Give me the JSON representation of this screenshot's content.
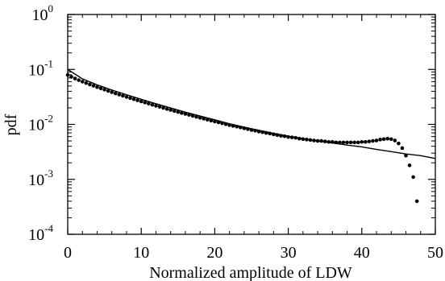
{
  "chart_data": {
    "type": "scatter",
    "title": "",
    "xlabel": "Normalized amplitude of LDW",
    "ylabel": "pdf",
    "xlim": [
      0,
      50
    ],
    "ylim": [
      0.0001,
      1
    ],
    "yscale": "log",
    "grid": false,
    "legend": "none",
    "x_ticks": [
      "0",
      "10",
      "20",
      "30",
      "40",
      "50"
    ],
    "y_ticks": [
      {
        "base": "10",
        "exp": "-4",
        "value": 0.0001
      },
      {
        "base": "10",
        "exp": "-3",
        "value": 0.001
      },
      {
        "base": "10",
        "exp": "-2",
        "value": 0.01
      },
      {
        "base": "10",
        "exp": "-1",
        "value": 0.1
      },
      {
        "base": "10",
        "exp": "0",
        "value": 1
      }
    ],
    "series": [
      {
        "kind": "points",
        "color": "#000000",
        "x": [
          0,
          0.5,
          1,
          1.5,
          2,
          2.5,
          3,
          3.5,
          4,
          4.5,
          5,
          5.5,
          6,
          6.5,
          7,
          7.5,
          8,
          8.5,
          9,
          9.5,
          10,
          10.5,
          11,
          11.5,
          12,
          12.5,
          13,
          13.5,
          14,
          14.5,
          15,
          15.5,
          16,
          16.5,
          17,
          17.5,
          18,
          18.5,
          19,
          19.5,
          20,
          20.5,
          21,
          21.5,
          22,
          22.5,
          23,
          23.5,
          24,
          24.5,
          25,
          25.5,
          26,
          26.5,
          27,
          27.5,
          28,
          28.5,
          29,
          29.5,
          30,
          30.5,
          31,
          31.5,
          32,
          32.5,
          33,
          33.5,
          34,
          34.5,
          35,
          35.5,
          36,
          36.5,
          37,
          37.5,
          38,
          38.5,
          39,
          39.5,
          40,
          40.5,
          41,
          41.5,
          42,
          42.5,
          43,
          43.5,
          44,
          44.5,
          45,
          45.5,
          46,
          46.5,
          47,
          47.5
        ],
        "y": [
          0.0794,
          0.0734,
          0.0683,
          0.0639,
          0.06,
          0.0565,
          0.0533,
          0.0504,
          0.0477,
          0.0452,
          0.0429,
          0.0407,
          0.0386,
          0.0367,
          0.0349,
          0.0332,
          0.0316,
          0.0301,
          0.0287,
          0.0274,
          0.0262,
          0.025,
          0.0239,
          0.0228,
          0.0218,
          0.0209,
          0.02,
          0.0191,
          0.0183,
          0.0175,
          0.0168,
          0.0161,
          0.0155,
          0.0149,
          0.0143,
          0.0137,
          0.0132,
          0.0127,
          0.0122,
          0.0117,
          0.0113,
          0.0109,
          0.0105,
          0.0101,
          0.0097,
          0.0094,
          0.0091,
          0.0088,
          0.0085,
          0.0082,
          0.0079,
          0.0077,
          0.0074,
          0.0072,
          0.007,
          0.0068,
          0.0066,
          0.0064,
          0.0062,
          0.0061,
          0.0059,
          0.0058,
          0.0057,
          0.0055,
          0.0054,
          0.0053,
          0.0052,
          0.0051,
          0.005,
          0.005,
          0.0049,
          0.0048,
          0.0048,
          0.0047,
          0.0047,
          0.0047,
          0.0047,
          0.0047,
          0.0047,
          0.0047,
          0.0048,
          0.0048,
          0.0049,
          0.005,
          0.0051,
          0.0053,
          0.0054,
          0.0055,
          0.0054,
          0.0051,
          0.0045,
          0.0037,
          0.0027,
          0.0018,
          0.0011,
          0.0004
        ]
      },
      {
        "kind": "fit-line",
        "color": "#000000",
        "x": [
          0,
          2,
          4,
          6,
          8,
          10,
          12,
          14,
          16,
          18,
          20,
          22,
          24,
          26,
          28,
          30,
          32,
          34,
          36,
          38,
          40,
          42,
          44,
          46,
          48,
          50
        ],
        "y": [
          0.1,
          0.0674,
          0.0524,
          0.0423,
          0.0347,
          0.0286,
          0.0238,
          0.0199,
          0.0167,
          0.0142,
          0.0121,
          0.0103,
          0.0089,
          0.0078,
          0.0069,
          0.0061,
          0.0055,
          0.005,
          0.0046,
          0.0042,
          0.0039,
          0.0035,
          0.0032,
          0.0029,
          0.0027,
          0.0024
        ]
      }
    ]
  }
}
